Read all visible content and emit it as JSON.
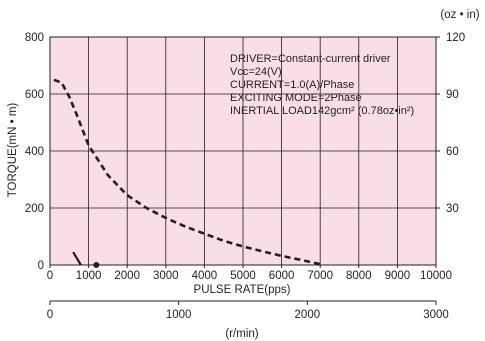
{
  "chart_data": {
    "type": "line",
    "x_axis": {
      "label": "PULSE RATE(pps)",
      "range": [
        0,
        10000
      ],
      "ticks": [
        0,
        1000,
        2000,
        3000,
        4000,
        5000,
        6000,
        7000,
        8000,
        9000,
        10000
      ]
    },
    "y_axis_left": {
      "label": "TORQUE(mN • m)",
      "range": [
        0,
        800
      ],
      "ticks": [
        0,
        200,
        400,
        600,
        800
      ]
    },
    "y_axis_right": {
      "unit_label": "(oz • in)",
      "range": [
        0,
        120
      ],
      "ticks": [
        30,
        60,
        90,
        120
      ]
    },
    "secondary_x_axis": {
      "unit_label": "(r/min)",
      "range": [
        0,
        3000
      ],
      "ticks": [
        0,
        1000,
        2000,
        3000
      ]
    },
    "annotations": [
      "DRIVER=Constant-current driver",
      "Vcc=24(V)",
      "CURRENT=1.0(A)/Phase",
      "EXCITING MODE=2Phase",
      "INERTIAL LOAD142gcm² (0.78oz•in²)"
    ],
    "series": [
      {
        "style": "dashed",
        "points": [
          {
            "x": 100,
            "y": 650
          },
          {
            "x": 300,
            "y": 640
          },
          {
            "x": 500,
            "y": 590
          },
          {
            "x": 700,
            "y": 525
          },
          {
            "x": 1000,
            "y": 420
          },
          {
            "x": 1500,
            "y": 315
          },
          {
            "x": 2000,
            "y": 245
          },
          {
            "x": 2500,
            "y": 200
          },
          {
            "x": 3000,
            "y": 165
          },
          {
            "x": 3500,
            "y": 135
          },
          {
            "x": 4000,
            "y": 110
          },
          {
            "x": 4500,
            "y": 85
          },
          {
            "x": 5000,
            "y": 65
          },
          {
            "x": 5500,
            "y": 48
          },
          {
            "x": 6000,
            "y": 32
          },
          {
            "x": 6500,
            "y": 18
          },
          {
            "x": 7000,
            "y": 3
          }
        ]
      },
      {
        "style": "solid",
        "points": [
          {
            "x": 600,
            "y": 45
          },
          {
            "x": 800,
            "y": 0
          }
        ]
      }
    ],
    "markers": [
      {
        "x": 1200,
        "y": 0
      }
    ],
    "grid": true,
    "plot_background": "#f9dde8",
    "line_color": "#231f20"
  }
}
